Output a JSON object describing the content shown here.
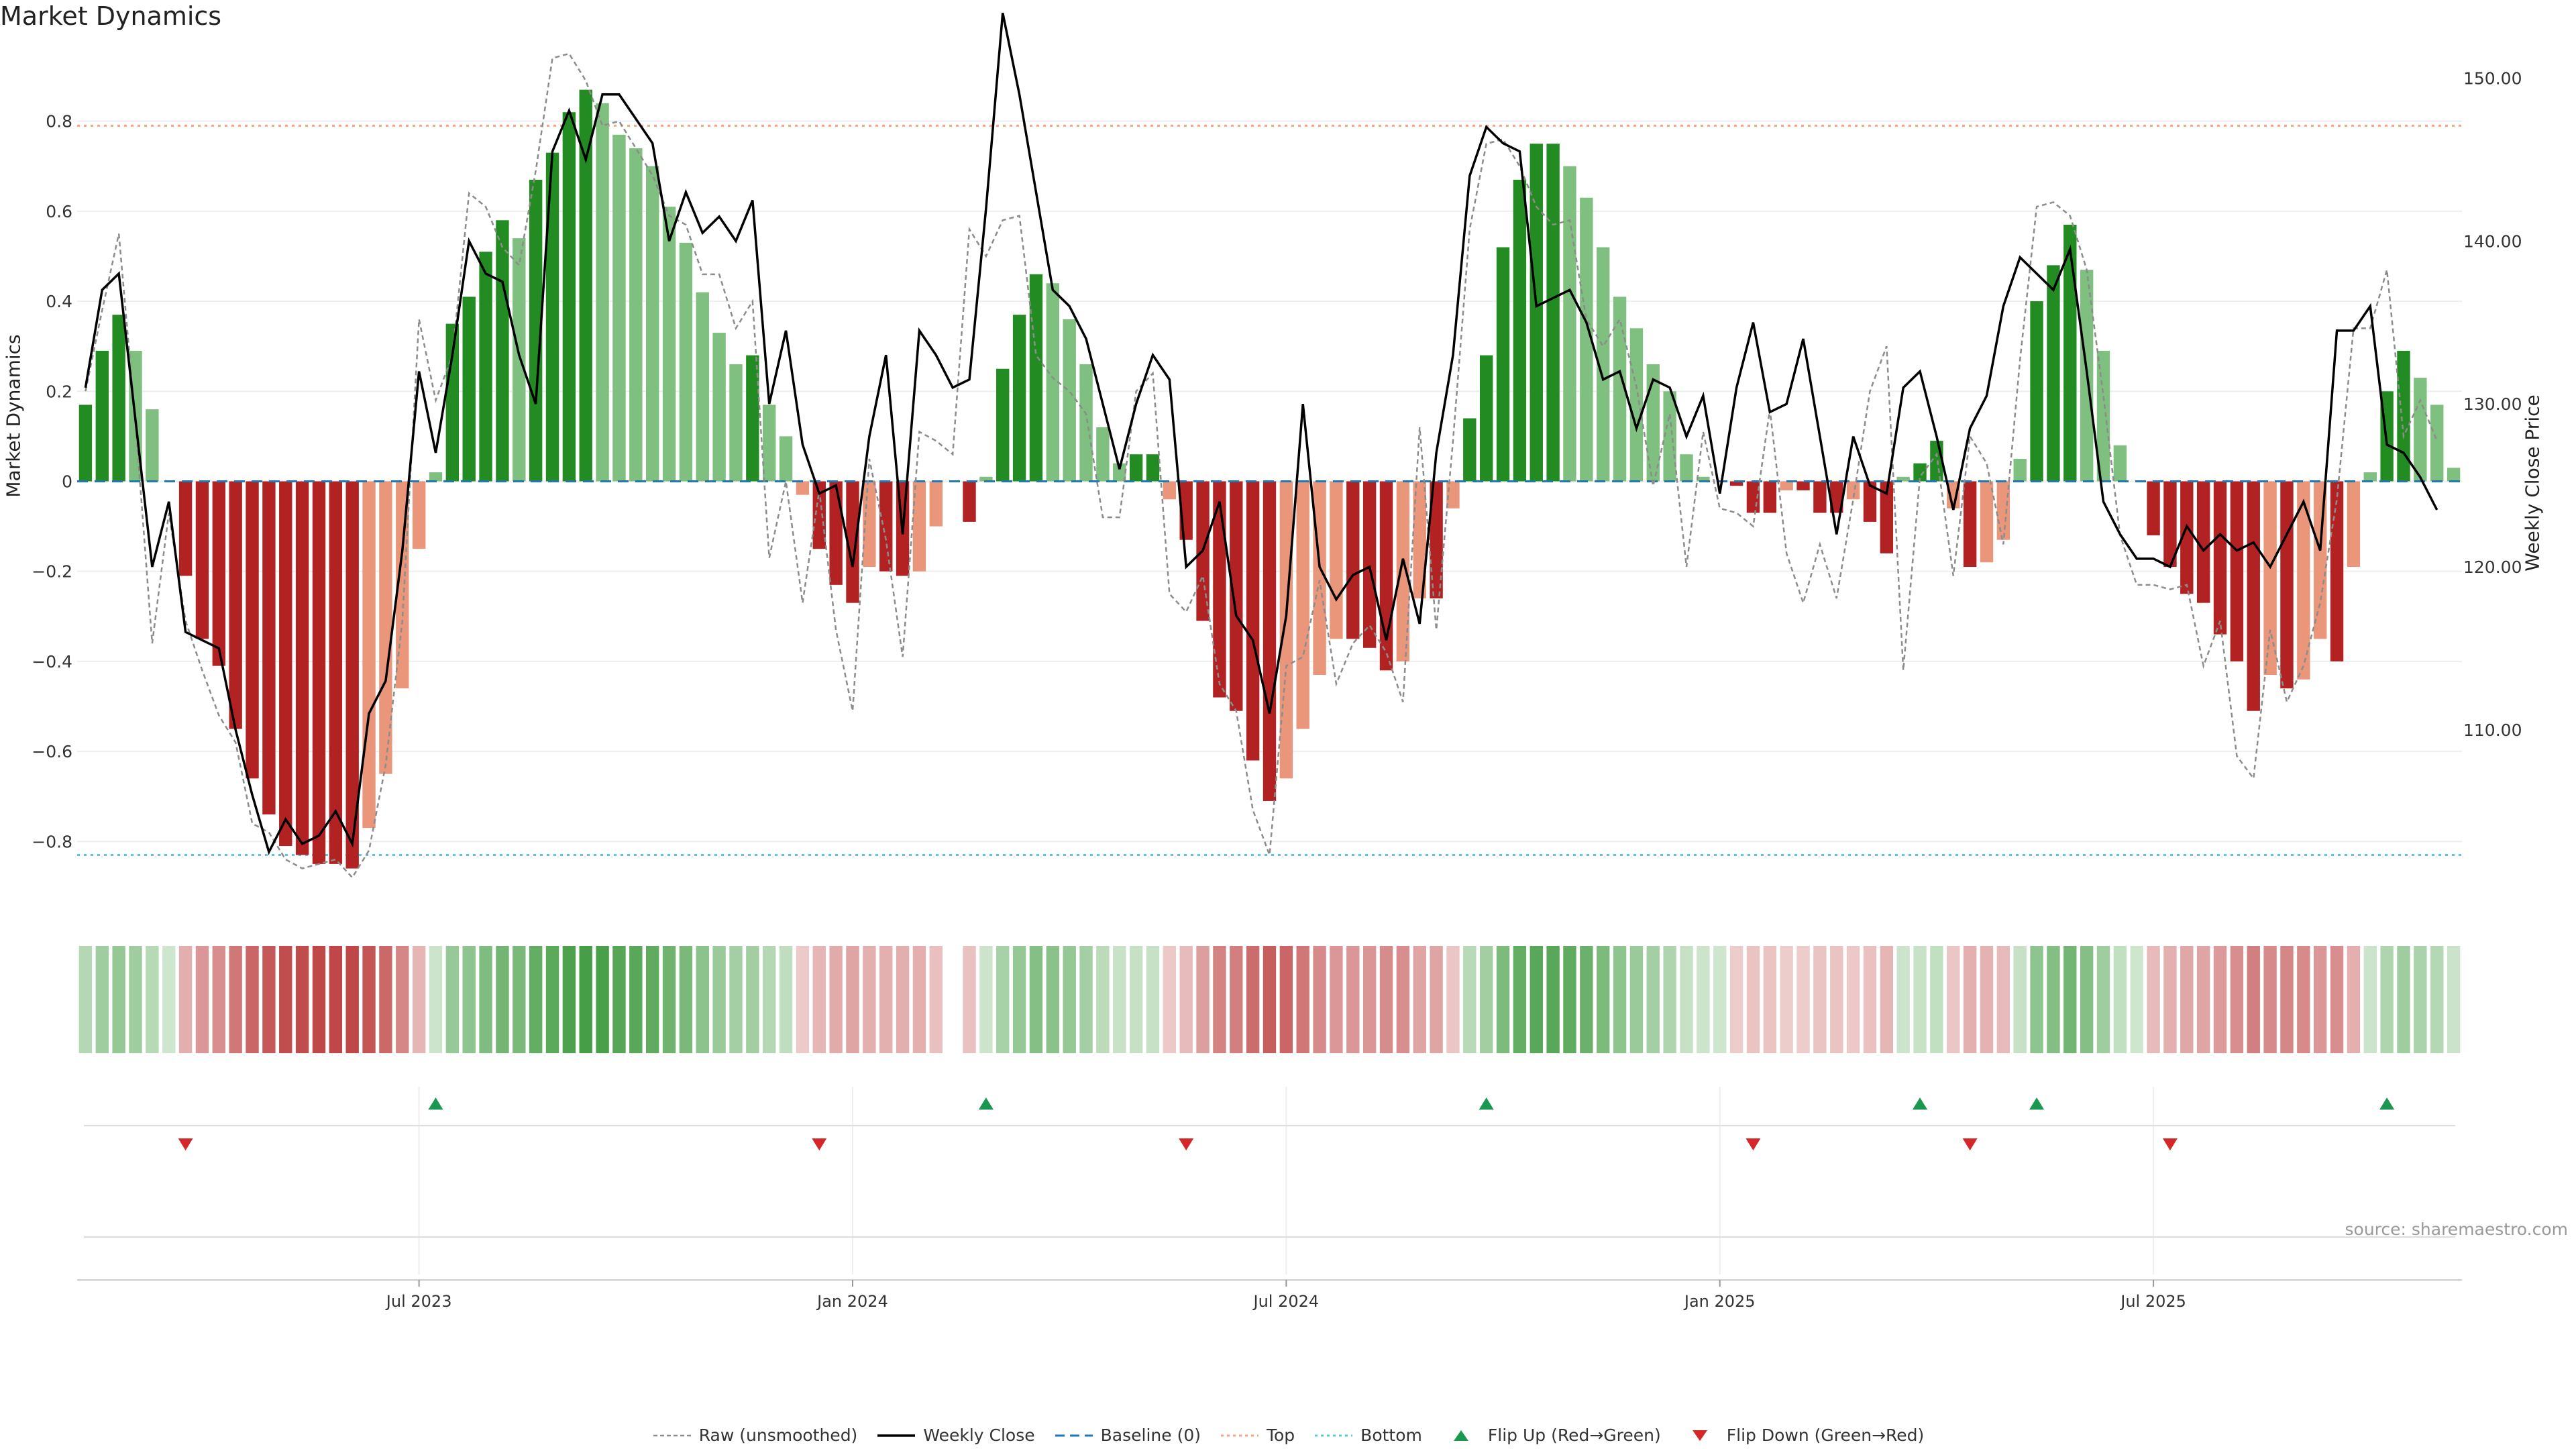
{
  "title": "Market Dynamics",
  "source": "source: sharemaestro.com",
  "chart_data": {
    "type": "bar",
    "xlabel": "",
    "ylabel": "Market Dynamics",
    "ylabel_right": "Weekly Close Price",
    "ylim": [
      -0.95,
      0.95
    ],
    "ylim_right": [
      99,
      151.5
    ],
    "yticks": [
      0.8,
      0.6,
      0.4,
      0.2,
      0,
      -0.2,
      -0.4,
      -0.6,
      -0.8
    ],
    "yticks_right": [
      150.0,
      140.0,
      130.0,
      120.0,
      110.0
    ],
    "xtick_labels": [
      "Jul 2023",
      "Jan 2024",
      "Jul 2024",
      "Jan 2025",
      "Jul 2025"
    ],
    "xtick_weeks": [
      20,
      46,
      72,
      98,
      124
    ],
    "top_line": 0.79,
    "bottom_line": -0.83,
    "colors": {
      "green_strong": "#228b22",
      "green_light": "#7fbf7f",
      "red_strong": "#b22222",
      "red_light": "#e9967a",
      "close": "#000000",
      "raw": "#8c8c8c",
      "baseline": "#1f77b4",
      "top": "#f4a582",
      "bottom": "#5bc8d8",
      "flip_up": "#1a9850",
      "flip_down": "#d62728"
    },
    "bars": [
      0.17,
      0.29,
      0.37,
      0.29,
      0.16,
      0.0,
      -0.21,
      -0.35,
      -0.41,
      -0.55,
      -0.66,
      -0.74,
      -0.81,
      -0.83,
      -0.85,
      -0.85,
      -0.86,
      -0.77,
      -0.65,
      -0.46,
      -0.15,
      0.02,
      0.35,
      0.41,
      0.51,
      0.58,
      0.54,
      0.67,
      0.73,
      0.82,
      0.87,
      0.84,
      0.77,
      0.74,
      0.7,
      0.61,
      0.53,
      0.42,
      0.33,
      0.26,
      0.28,
      0.17,
      0.1,
      -0.03,
      -0.15,
      -0.23,
      -0.27,
      -0.19,
      -0.2,
      -0.21,
      -0.2,
      -0.1,
      0.0,
      -0.09,
      0.01,
      0.25,
      0.37,
      0.46,
      0.44,
      0.36,
      0.26,
      0.12,
      0.04,
      0.06,
      0.06,
      -0.04,
      -0.13,
      -0.31,
      -0.48,
      -0.51,
      -0.62,
      -0.71,
      -0.66,
      -0.55,
      -0.43,
      -0.35,
      -0.35,
      -0.37,
      -0.42,
      -0.4,
      -0.26,
      -0.26,
      -0.06,
      0.14,
      0.28,
      0.52,
      0.67,
      0.75,
      0.75,
      0.7,
      0.63,
      0.52,
      0.41,
      0.34,
      0.26,
      0.2,
      0.06,
      0.01,
      0.0,
      -0.01,
      -0.07,
      -0.07,
      -0.02,
      -0.02,
      -0.07,
      -0.07,
      -0.04,
      -0.09,
      -0.16,
      0.01,
      0.04,
      0.09,
      -0.06,
      -0.19,
      -0.18,
      -0.13,
      0.05,
      0.4,
      0.48,
      0.57,
      0.47,
      0.29,
      0.08,
      0.0,
      -0.12,
      -0.19,
      -0.25,
      -0.27,
      -0.34,
      -0.4,
      -0.51,
      -0.43,
      -0.46,
      -0.44,
      -0.35,
      -0.4,
      -0.19,
      0.02,
      0.2,
      0.29,
      0.23,
      0.17,
      0.03
    ],
    "weekly_close": [
      131.0,
      137.0,
      138.0,
      129.0,
      120.0,
      124.0,
      116.0,
      115.5,
      115.0,
      110.0,
      106.0,
      102.5,
      104.5,
      103.0,
      103.5,
      105.0,
      103.0,
      111.0,
      113.0,
      121.0,
      132.0,
      127.0,
      133.0,
      140.0,
      138.0,
      137.5,
      133.0,
      130.0,
      145.5,
      148.0,
      145.0,
      149.0,
      149.0,
      147.5,
      146.0,
      140.0,
      143.0,
      140.5,
      141.5,
      140.0,
      142.5,
      130.0,
      134.5,
      127.5,
      124.5,
      125.0,
      120.0,
      128.0,
      133.0,
      122.0,
      134.5,
      133.0,
      131.0,
      131.5,
      142.0,
      154.0,
      149.0,
      143.0,
      137.0,
      136.0,
      134.0,
      130.0,
      126.0,
      130.0,
      133.0,
      131.5,
      120.0,
      121.0,
      124.0,
      117.0,
      115.5,
      111.0,
      117.0,
      130.0,
      120.0,
      118.0,
      119.5,
      120.0,
      115.5,
      120.5,
      116.5,
      127.0,
      133.0,
      144.0,
      147.0,
      146.0,
      145.5,
      136.0,
      136.5,
      137.0,
      135.0,
      131.5,
      132.0,
      128.5,
      131.5,
      131.0,
      128.0,
      130.5,
      124.5,
      131.0,
      135.0,
      129.5,
      130.0,
      134.0,
      128.0,
      122.0,
      128.0,
      125.0,
      124.5,
      131.0,
      132.0,
      128.0,
      123.5,
      128.5,
      130.5,
      136.0,
      139.0,
      138.0,
      137.0,
      139.5,
      132.0,
      124.0,
      122.0,
      120.5,
      120.5,
      120.0,
      122.5,
      121.0,
      122.0,
      121.0,
      121.5,
      120.0,
      122.0,
      124.0,
      121.0,
      134.5,
      134.5,
      136.0,
      127.5,
      127.0,
      125.5,
      123.5
    ],
    "raw": [
      0.2,
      0.38,
      0.55,
      0.13,
      -0.36,
      -0.07,
      -0.31,
      -0.42,
      -0.52,
      -0.58,
      -0.76,
      -0.78,
      -0.84,
      -0.86,
      -0.85,
      -0.84,
      -0.88,
      -0.82,
      -0.63,
      -0.31,
      0.36,
      0.18,
      0.28,
      0.64,
      0.61,
      0.52,
      0.48,
      0.69,
      0.94,
      0.95,
      0.89,
      0.79,
      0.8,
      0.74,
      0.68,
      0.59,
      0.57,
      0.46,
      0.46,
      0.34,
      0.4,
      -0.17,
      0.0,
      -0.27,
      -0.02,
      -0.33,
      -0.51,
      0.05,
      -0.13,
      -0.39,
      0.11,
      0.09,
      0.06,
      0.56,
      0.5,
      0.58,
      0.59,
      0.28,
      0.23,
      0.2,
      0.15,
      -0.08,
      -0.08,
      0.2,
      0.24,
      -0.25,
      -0.29,
      -0.21,
      -0.45,
      -0.51,
      -0.73,
      -0.83,
      -0.41,
      -0.39,
      -0.22,
      -0.45,
      -0.36,
      -0.32,
      -0.38,
      -0.49,
      0.12,
      -0.33,
      0.09,
      0.56,
      0.75,
      0.76,
      0.7,
      0.61,
      0.57,
      0.58,
      0.36,
      0.3,
      0.36,
      0.21,
      -0.01,
      0.15,
      -0.19,
      0.11,
      -0.06,
      -0.07,
      -0.1,
      0.16,
      -0.16,
      -0.27,
      -0.14,
      -0.26,
      -0.04,
      0.2,
      0.3,
      -0.42,
      0.01,
      0.06,
      -0.21,
      0.1,
      0.04,
      -0.14,
      0.27,
      0.61,
      0.62,
      0.59,
      0.47,
      0.19,
      -0.12,
      -0.23,
      -0.23,
      -0.24,
      -0.23,
      -0.41,
      -0.31,
      -0.61,
      -0.66,
      -0.33,
      -0.49,
      -0.41,
      -0.27,
      -0.04,
      0.34,
      0.34,
      0.47,
      0.1,
      0.18,
      0.09
    ],
    "flip_up_weeks": [
      21,
      54,
      84,
      110,
      117,
      138
    ],
    "flip_down_weeks": [
      6,
      44,
      66,
      100,
      113,
      125
    ],
    "legend": [
      {
        "label": "Raw (unsmoothed)",
        "kind": "raw"
      },
      {
        "label": "Weekly Close",
        "kind": "close"
      },
      {
        "label": "Baseline (0)",
        "kind": "baseline"
      },
      {
        "label": "Top",
        "kind": "top"
      },
      {
        "label": "Bottom",
        "kind": "bottom"
      },
      {
        "label": "Flip Up (Red→Green)",
        "kind": "flip_up"
      },
      {
        "label": "Flip Down (Green→Red)",
        "kind": "flip_down"
      }
    ]
  }
}
